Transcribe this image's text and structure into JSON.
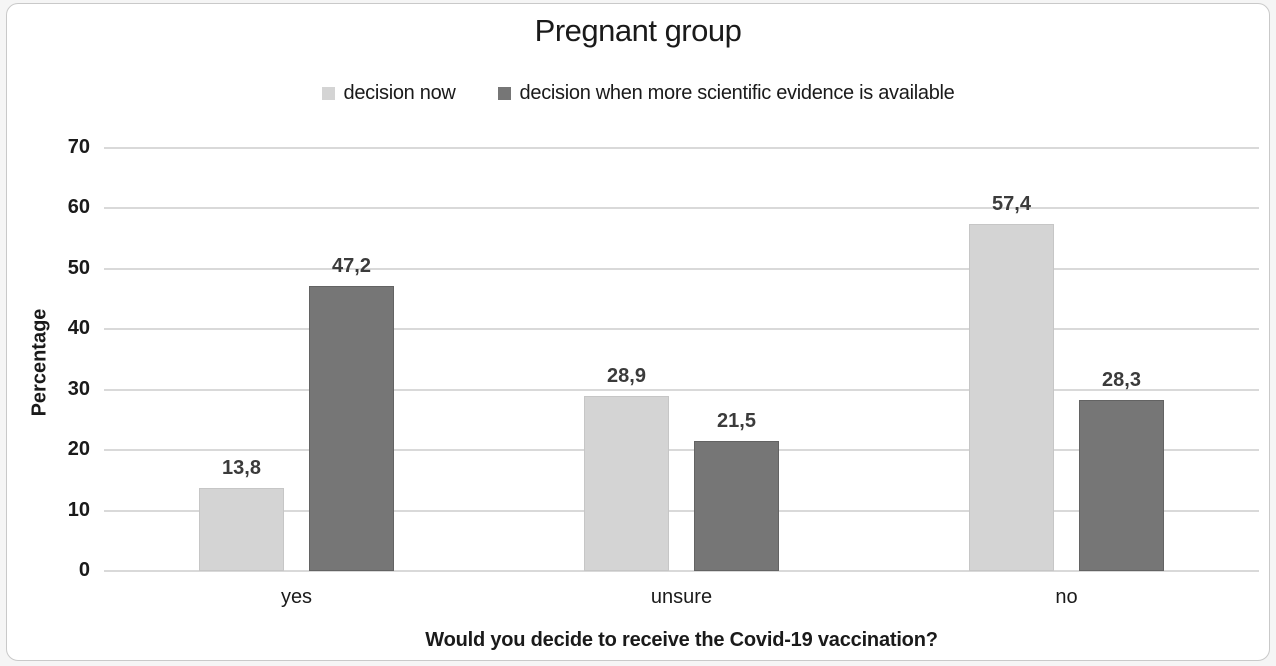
{
  "chart_data": {
    "type": "bar",
    "title": "Pregnant group",
    "categories": [
      "yes",
      "unsure",
      "no"
    ],
    "series": [
      {
        "name": "decision now",
        "color": "#d4d4d4",
        "values": [
          13.8,
          28.9,
          57.4
        ],
        "labels": [
          "13,8",
          "28,9",
          "57,4"
        ]
      },
      {
        "name": "decision when more scientific evidence is available",
        "color": "#767676",
        "values": [
          47.2,
          21.5,
          28.3
        ],
        "labels": [
          "47,2",
          "21,5",
          "28,3"
        ]
      }
    ],
    "xlabel": "Would you decide to receive the Covid-19 vaccination?",
    "ylabel": "Percentage",
    "ylim": [
      0,
      70
    ],
    "ytick_step": 10,
    "ytick_labels": [
      "0",
      "10",
      "20",
      "30",
      "40",
      "50",
      "60",
      "70"
    ],
    "legend_position": "top",
    "grid": true
  },
  "figure": {
    "background": "#ffffff",
    "border_color": "#c9c9c9",
    "gridline_color": "#d9d9d9",
    "text_color": "#1a1a1a",
    "value_label_color": "#3b3b3b"
  }
}
